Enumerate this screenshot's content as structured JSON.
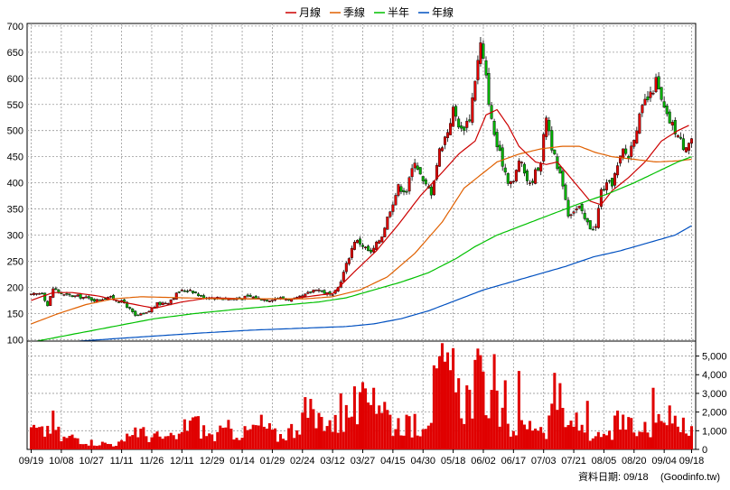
{
  "chart_data": {
    "type": "line",
    "legend": [
      {
        "name": "月線",
        "color": "#cc0000"
      },
      {
        "name": "季線",
        "color": "#e06000"
      },
      {
        "name": "半年",
        "color": "#00c000"
      },
      {
        "name": "年線",
        "color": "#0050c0"
      }
    ],
    "legend_position": "top-center",
    "grid": true,
    "price_axis": {
      "ylim": [
        85,
        705
      ],
      "ticks": [
        100,
        150,
        200,
        250,
        300,
        350,
        400,
        450,
        500,
        550,
        600,
        650,
        700
      ]
    },
    "volume_axis": {
      "ylim": [
        0,
        5800
      ],
      "ticks": [
        0,
        1000,
        2000,
        3000,
        4000,
        5000
      ],
      "tick_labels": [
        "0",
        "1,000",
        "2,000",
        "3,000",
        "4,000",
        "5,000"
      ]
    },
    "x_ticks": [
      {
        "label": "09/19",
        "i": 0
      },
      {
        "label": "10/08",
        "i": 11
      },
      {
        "label": "10/27",
        "i": 22
      },
      {
        "label": "11/11",
        "i": 33
      },
      {
        "label": "11/26",
        "i": 44
      },
      {
        "label": "12/11",
        "i": 55
      },
      {
        "label": "12/29",
        "i": 66
      },
      {
        "label": "01/14",
        "i": 77
      },
      {
        "label": "01/29",
        "i": 88
      },
      {
        "label": "02/24",
        "i": 99
      },
      {
        "label": "03/12",
        "i": 110
      },
      {
        "label": "03/27",
        "i": 121
      },
      {
        "label": "04/15",
        "i": 132
      },
      {
        "label": "04/30",
        "i": 143
      },
      {
        "label": "05/18",
        "i": 154
      },
      {
        "label": "06/02",
        "i": 165
      },
      {
        "label": "06/17",
        "i": 176
      },
      {
        "label": "07/03",
        "i": 187
      },
      {
        "label": "07/21",
        "i": 198
      },
      {
        "label": "08/05",
        "i": 209
      },
      {
        "label": "08/20",
        "i": 220
      },
      {
        "label": "09/04",
        "i": 231
      },
      {
        "label": "09/18",
        "i": 241
      }
    ],
    "n_days": 242,
    "close_keypoints": [
      [
        0,
        185
      ],
      [
        4,
        190
      ],
      [
        6,
        165
      ],
      [
        8,
        198
      ],
      [
        12,
        185
      ],
      [
        18,
        182
      ],
      [
        24,
        175
      ],
      [
        28,
        182
      ],
      [
        34,
        170
      ],
      [
        38,
        145
      ],
      [
        42,
        150
      ],
      [
        46,
        168
      ],
      [
        50,
        172
      ],
      [
        54,
        192
      ],
      [
        58,
        196
      ],
      [
        62,
        182
      ],
      [
        68,
        180
      ],
      [
        74,
        178
      ],
      [
        80,
        182
      ],
      [
        86,
        176
      ],
      [
        90,
        180
      ],
      [
        96,
        176
      ],
      [
        100,
        185
      ],
      [
        104,
        198
      ],
      [
        108,
        188
      ],
      [
        110,
        183
      ],
      [
        112,
        200
      ],
      [
        114,
        228
      ],
      [
        118,
        290
      ],
      [
        120,
        285
      ],
      [
        124,
        265
      ],
      [
        128,
        300
      ],
      [
        131,
        350
      ],
      [
        134,
        392
      ],
      [
        137,
        385
      ],
      [
        140,
        445
      ],
      [
        143,
        400
      ],
      [
        146,
        382
      ],
      [
        149,
        462
      ],
      [
        152,
        500
      ],
      [
        154,
        540
      ],
      [
        157,
        500
      ],
      [
        160,
        525
      ],
      [
        162,
        600
      ],
      [
        164,
        665
      ],
      [
        166,
        600
      ],
      [
        168,
        518
      ],
      [
        170,
        470
      ],
      [
        172,
        438
      ],
      [
        174,
        405
      ],
      [
        176,
        400
      ],
      [
        178,
        445
      ],
      [
        180,
        420
      ],
      [
        182,
        395
      ],
      [
        184,
        420
      ],
      [
        186,
        442
      ],
      [
        188,
        530
      ],
      [
        190,
        470
      ],
      [
        192,
        425
      ],
      [
        194,
        400
      ],
      [
        196,
        340
      ],
      [
        198,
        348
      ],
      [
        200,
        352
      ],
      [
        202,
        330
      ],
      [
        204,
        315
      ],
      [
        206,
        315
      ],
      [
        208,
        385
      ],
      [
        210,
        395
      ],
      [
        212,
        400
      ],
      [
        214,
        430
      ],
      [
        216,
        462
      ],
      [
        218,
        450
      ],
      [
        220,
        490
      ],
      [
        222,
        525
      ],
      [
        224,
        555
      ],
      [
        226,
        565
      ],
      [
        228,
        595
      ],
      [
        230,
        555
      ],
      [
        232,
        525
      ],
      [
        234,
        510
      ],
      [
        236,
        490
      ],
      [
        238,
        470
      ],
      [
        241,
        485
      ]
    ],
    "moving_averages": {
      "月線": [
        [
          0,
          175
        ],
        [
          8,
          190
        ],
        [
          15,
          190
        ],
        [
          25,
          183
        ],
        [
          35,
          170
        ],
        [
          45,
          160
        ],
        [
          55,
          172
        ],
        [
          65,
          180
        ],
        [
          80,
          178
        ],
        [
          95,
          178
        ],
        [
          105,
          185
        ],
        [
          110,
          188
        ],
        [
          118,
          230
        ],
        [
          126,
          270
        ],
        [
          134,
          320
        ],
        [
          142,
          375
        ],
        [
          150,
          420
        ],
        [
          156,
          455
        ],
        [
          162,
          480
        ],
        [
          166,
          530
        ],
        [
          170,
          540
        ],
        [
          174,
          510
        ],
        [
          178,
          470
        ],
        [
          184,
          440
        ],
        [
          188,
          435
        ],
        [
          192,
          440
        ],
        [
          196,
          415
        ],
        [
          200,
          390
        ],
        [
          204,
          365
        ],
        [
          208,
          358
        ],
        [
          212,
          385
        ],
        [
          218,
          410
        ],
        [
          224,
          440
        ],
        [
          230,
          480
        ],
        [
          236,
          500
        ],
        [
          240,
          510
        ]
      ],
      "季線": [
        [
          0,
          130
        ],
        [
          10,
          150
        ],
        [
          20,
          167
        ],
        [
          30,
          178
        ],
        [
          40,
          182
        ],
        [
          55,
          180
        ],
        [
          70,
          178
        ],
        [
          85,
          178
        ],
        [
          100,
          178
        ],
        [
          110,
          182
        ],
        [
          120,
          195
        ],
        [
          130,
          220
        ],
        [
          140,
          265
        ],
        [
          150,
          325
        ],
        [
          158,
          390
        ],
        [
          164,
          415
        ],
        [
          170,
          440
        ],
        [
          178,
          455
        ],
        [
          186,
          465
        ],
        [
          194,
          470
        ],
        [
          200,
          470
        ],
        [
          206,
          458
        ],
        [
          212,
          450
        ],
        [
          220,
          445
        ],
        [
          228,
          440
        ],
        [
          236,
          442
        ],
        [
          241,
          445
        ]
      ],
      "半年": [
        [
          0,
          95
        ],
        [
          15,
          110
        ],
        [
          30,
          125
        ],
        [
          45,
          140
        ],
        [
          60,
          150
        ],
        [
          75,
          158
        ],
        [
          90,
          165
        ],
        [
          105,
          172
        ],
        [
          115,
          180
        ],
        [
          125,
          195
        ],
        [
          135,
          210
        ],
        [
          145,
          228
        ],
        [
          155,
          255
        ],
        [
          162,
          278
        ],
        [
          170,
          300
        ],
        [
          180,
          320
        ],
        [
          190,
          340
        ],
        [
          200,
          360
        ],
        [
          210,
          378
        ],
        [
          220,
          400
        ],
        [
          230,
          425
        ],
        [
          236,
          440
        ],
        [
          241,
          450
        ]
      ],
      "年線": [
        [
          0,
          90
        ],
        [
          20,
          98
        ],
        [
          40,
          105
        ],
        [
          60,
          112
        ],
        [
          80,
          118
        ],
        [
          100,
          122
        ],
        [
          115,
          125
        ],
        [
          125,
          130
        ],
        [
          135,
          140
        ],
        [
          145,
          155
        ],
        [
          155,
          175
        ],
        [
          165,
          195
        ],
        [
          175,
          210
        ],
        [
          185,
          225
        ],
        [
          195,
          240
        ],
        [
          205,
          258
        ],
        [
          215,
          270
        ],
        [
          225,
          285
        ],
        [
          235,
          300
        ],
        [
          241,
          318
        ]
      ]
    },
    "volume_keypoints": [
      [
        0,
        1200
      ],
      [
        4,
        900
      ],
      [
        8,
        1500
      ],
      [
        11,
        600
      ],
      [
        16,
        700
      ],
      [
        22,
        400
      ],
      [
        30,
        300
      ],
      [
        34,
        400
      ],
      [
        38,
        1200
      ],
      [
        42,
        800
      ],
      [
        46,
        700
      ],
      [
        50,
        600
      ],
      [
        54,
        700
      ],
      [
        58,
        1800
      ],
      [
        62,
        1200
      ],
      [
        66,
        700
      ],
      [
        72,
        1100
      ],
      [
        78,
        900
      ],
      [
        84,
        1400
      ],
      [
        90,
        700
      ],
      [
        96,
        1200
      ],
      [
        100,
        2200
      ],
      [
        104,
        1600
      ],
      [
        108,
        1900
      ],
      [
        110,
        1300
      ],
      [
        114,
        1700
      ],
      [
        118,
        2400
      ],
      [
        121,
        2000
      ],
      [
        124,
        3100
      ],
      [
        128,
        2800
      ],
      [
        132,
        1400
      ],
      [
        136,
        1600
      ],
      [
        140,
        1000
      ],
      [
        143,
        1800
      ],
      [
        146,
        2400
      ],
      [
        150,
        4100
      ],
      [
        154,
        3800
      ],
      [
        157,
        2800
      ],
      [
        160,
        3000
      ],
      [
        162,
        3500
      ],
      [
        164,
        3600
      ],
      [
        168,
        2700
      ],
      [
        172,
        1700
      ],
      [
        176,
        1100
      ],
      [
        180,
        1200
      ],
      [
        184,
        1500
      ],
      [
        188,
        1200
      ],
      [
        192,
        3200
      ],
      [
        195,
        1100
      ],
      [
        198,
        1600
      ],
      [
        200,
        1300
      ],
      [
        204,
        900
      ],
      [
        206,
        500
      ],
      [
        208,
        800
      ],
      [
        210,
        600
      ],
      [
        214,
        1500
      ],
      [
        218,
        1300
      ],
      [
        222,
        900
      ],
      [
        226,
        1400
      ],
      [
        230,
        2300
      ],
      [
        233,
        1800
      ],
      [
        236,
        1500
      ],
      [
        241,
        1400
      ]
    ],
    "volume_spikes": [
      [
        113,
        3000
      ],
      [
        121,
        3600
      ],
      [
        125,
        3300
      ],
      [
        140,
        1900
      ],
      [
        147,
        4500
      ],
      [
        151,
        4700
      ],
      [
        163,
        5400
      ],
      [
        169,
        5100
      ],
      [
        173,
        3700
      ],
      [
        178,
        4200
      ],
      [
        191,
        4100
      ],
      [
        203,
        2600
      ],
      [
        227,
        3300
      ],
      [
        238,
        1700
      ]
    ]
  },
  "footer": {
    "label": "資料日期: 09/18",
    "source": "(Goodinfo.tw)"
  }
}
